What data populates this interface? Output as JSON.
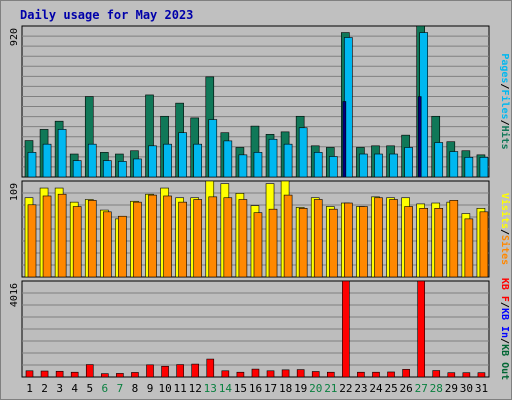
{
  "colors": {
    "background": "#c0c0c0",
    "plot": "#bdbdbd",
    "grid": "#808080",
    "hits": "#107858",
    "files": "#00b8f0",
    "pages": "#000080",
    "visits": "#ffff00",
    "sites": "#ff8800",
    "kb_f": "#ff0000",
    "kb_in": "#0000ff",
    "kb_out": "#006633",
    "title": "#0000aa",
    "weekend": "#0a8040"
  },
  "chart_data": [
    {
      "type": "bar",
      "title": "Daily usage for May 2023",
      "panel": "hits-files-pages",
      "ylabel": "920",
      "ylim": [
        0,
        920
      ],
      "side_labels": [
        "Pages",
        "/",
        "Files",
        "/",
        "Hits"
      ],
      "categories": [
        "1",
        "2",
        "3",
        "4",
        "5",
        "6",
        "7",
        "8",
        "9",
        "10",
        "11",
        "12",
        "13",
        "14",
        "15",
        "16",
        "17",
        "18",
        "19",
        "20",
        "21",
        "22",
        "23",
        "24",
        "25",
        "26",
        "27",
        "28",
        "29",
        "30",
        "31"
      ],
      "weekend_days": [
        "6",
        "7",
        "13",
        "14",
        "20",
        "21",
        "27",
        "28"
      ],
      "series": [
        {
          "name": "Hits",
          "values": [
            222,
            290,
            340,
            140,
            490,
            150,
            140,
            160,
            500,
            370,
            450,
            360,
            610,
            270,
            180,
            310,
            260,
            275,
            370,
            190,
            180,
            880,
            180,
            190,
            190,
            255,
            920,
            370,
            215,
            160,
            135
          ]
        },
        {
          "name": "Files",
          "values": [
            150,
            200,
            290,
            100,
            200,
            100,
            95,
            110,
            190,
            200,
            270,
            200,
            350,
            220,
            135,
            150,
            230,
            200,
            300,
            150,
            125,
            850,
            140,
            140,
            140,
            180,
            880,
            210,
            155,
            120,
            120
          ]
        },
        {
          "name": "Pages",
          "values": [
            0,
            0,
            0,
            0,
            0,
            0,
            0,
            0,
            0,
            0,
            0,
            0,
            0,
            0,
            0,
            0,
            0,
            0,
            0,
            0,
            0,
            460,
            0,
            0,
            0,
            0,
            490,
            0,
            0,
            0,
            0
          ]
        }
      ]
    },
    {
      "type": "bar",
      "panel": "visits-sites",
      "ylabel": "109",
      "ylim": [
        0,
        109
      ],
      "side_labels": [
        "Visits",
        "/",
        "Sites"
      ],
      "series": [
        {
          "name": "Visits",
          "values": [
            90,
            101,
            101,
            85,
            88,
            76,
            66,
            86,
            94,
            101,
            90,
            90,
            109,
            106,
            95,
            81,
            106,
            109,
            79,
            90,
            80,
            84,
            80,
            91,
            90,
            90,
            83,
            84,
            85,
            72,
            78
          ]
        },
        {
          "name": "Sites",
          "values": [
            82,
            92,
            94,
            80,
            87,
            74,
            69,
            85,
            93,
            92,
            85,
            88,
            91,
            90,
            88,
            73,
            77,
            93,
            78,
            88,
            77,
            84,
            80,
            90,
            88,
            80,
            78,
            78,
            87,
            66,
            74
          ]
        }
      ]
    },
    {
      "type": "bar",
      "panel": "kbytes",
      "ylabel": "4016",
      "ylim": [
        0,
        4016
      ],
      "side_labels": [
        "KB F",
        "/",
        "KB In",
        "/",
        "KB Out"
      ],
      "series": [
        {
          "name": "KB F",
          "values": [
            260,
            250,
            240,
            200,
            520,
            140,
            150,
            190,
            510,
            450,
            520,
            540,
            750,
            260,
            200,
            330,
            260,
            300,
            310,
            230,
            200,
            4016,
            200,
            200,
            210,
            320,
            4016,
            270,
            180,
            180,
            180
          ]
        }
      ]
    }
  ]
}
